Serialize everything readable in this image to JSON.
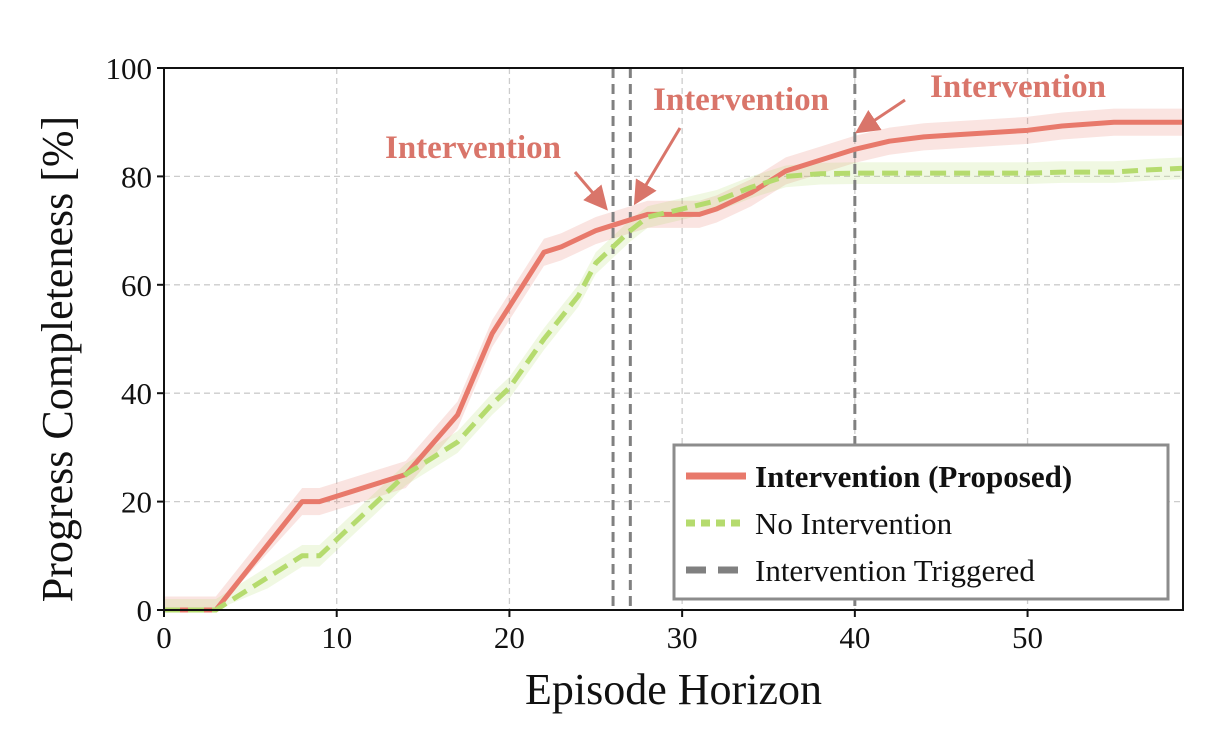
{
  "chart_data": {
    "type": "line",
    "xlabel": "Episode Horizon",
    "ylabel": "Progress Completeness [%]",
    "xlim": [
      0,
      59
    ],
    "ylim": [
      0,
      100
    ],
    "xticks": [
      0,
      10,
      20,
      30,
      40,
      50
    ],
    "yticks": [
      0,
      20,
      40,
      60,
      80,
      100
    ],
    "grid": true,
    "legend_position": "bottom-right",
    "series": [
      {
        "name": "Intervention (Proposed)",
        "style": "solid",
        "color": "#e8796b",
        "x": [
          0,
          3,
          8,
          9,
          14,
          17,
          19,
          20,
          22,
          23,
          25,
          26,
          27,
          28,
          29,
          31,
          32,
          34,
          36,
          38,
          40,
          42,
          44,
          46,
          48,
          50,
          52,
          55,
          57,
          59
        ],
        "y": [
          0,
          0,
          20,
          20,
          25,
          36,
          51,
          56,
          66,
          67,
          70,
          71,
          72,
          73,
          73,
          73,
          74,
          77,
          81,
          83,
          85,
          86.5,
          87.3,
          87.7,
          88.1,
          88.5,
          89.3,
          90,
          90,
          90
        ],
        "band": 2.5
      },
      {
        "name": "No Intervention",
        "style": "dotted",
        "color": "#b5db6e",
        "x": [
          0,
          3,
          6,
          8,
          9,
          11,
          14,
          17,
          19,
          20,
          22,
          24,
          25,
          26,
          27,
          28,
          30,
          32,
          34,
          36,
          38,
          40,
          42,
          44,
          46,
          48,
          50,
          52,
          55,
          57,
          59
        ],
        "y": [
          0,
          0,
          6,
          10,
          10,
          16,
          25,
          31,
          38,
          41,
          50,
          58,
          64,
          67,
          70,
          72.5,
          74,
          75.5,
          78,
          80,
          80.5,
          80.6,
          80.6,
          80.6,
          80.6,
          80.6,
          80.6,
          80.8,
          80.8,
          81.2,
          81.5
        ],
        "band": 2
      }
    ],
    "interventions": [
      26,
      27,
      40
    ],
    "vline_color": "#808080",
    "annotations": [
      {
        "text": "Intervention",
        "target_x": 26,
        "target_y": 75
      },
      {
        "text": "Intervention",
        "target_x": 27,
        "target_y": 76
      },
      {
        "text": "Intervention",
        "target_x": 40,
        "target_y": 88
      }
    ],
    "annotation_color": "#d9756a",
    "legend": [
      {
        "label": "Intervention (Proposed)",
        "bold": true
      },
      {
        "label": "No Intervention",
        "bold": false
      },
      {
        "label": "Intervention Triggered",
        "bold": false
      }
    ]
  }
}
